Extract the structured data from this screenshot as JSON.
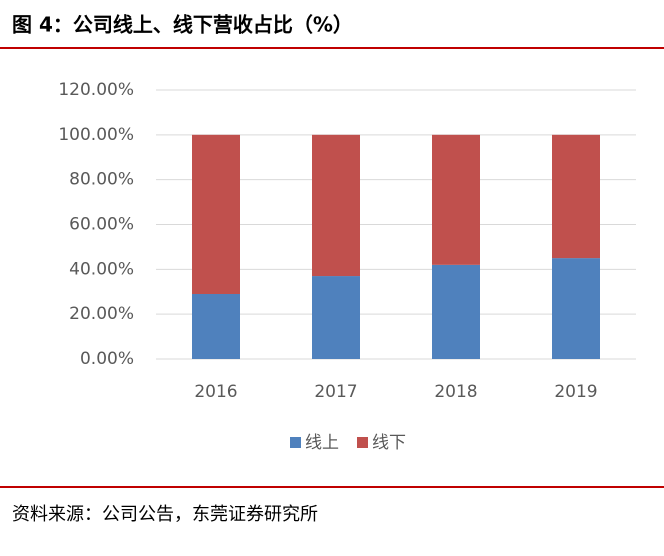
{
  "chart_data": {
    "type": "bar",
    "stacked": true,
    "title": "图 4：公司线上、线下营收占比（%）",
    "source": "资料来源：公司公告，东莞证券研究所",
    "categories": [
      "2016",
      "2017",
      "2018",
      "2019"
    ],
    "series": [
      {
        "name": "线上",
        "color": "#4f81bd",
        "values": [
          29,
          37,
          42,
          45
        ]
      },
      {
        "name": "线下",
        "color": "#c0504d",
        "values": [
          71,
          63,
          58,
          55
        ]
      }
    ],
    "ylim": [
      0,
      120
    ],
    "yticks": [
      {
        "value": 0,
        "label": "0.00%"
      },
      {
        "value": 20,
        "label": "20.00%"
      },
      {
        "value": 40,
        "label": "40.00%"
      },
      {
        "value": 60,
        "label": "60.00%"
      },
      {
        "value": 80,
        "label": "80.00%"
      },
      {
        "value": 100,
        "label": "100.00%"
      },
      {
        "value": 120,
        "label": "120.00%"
      }
    ],
    "grid": true,
    "legend": "bottom"
  }
}
